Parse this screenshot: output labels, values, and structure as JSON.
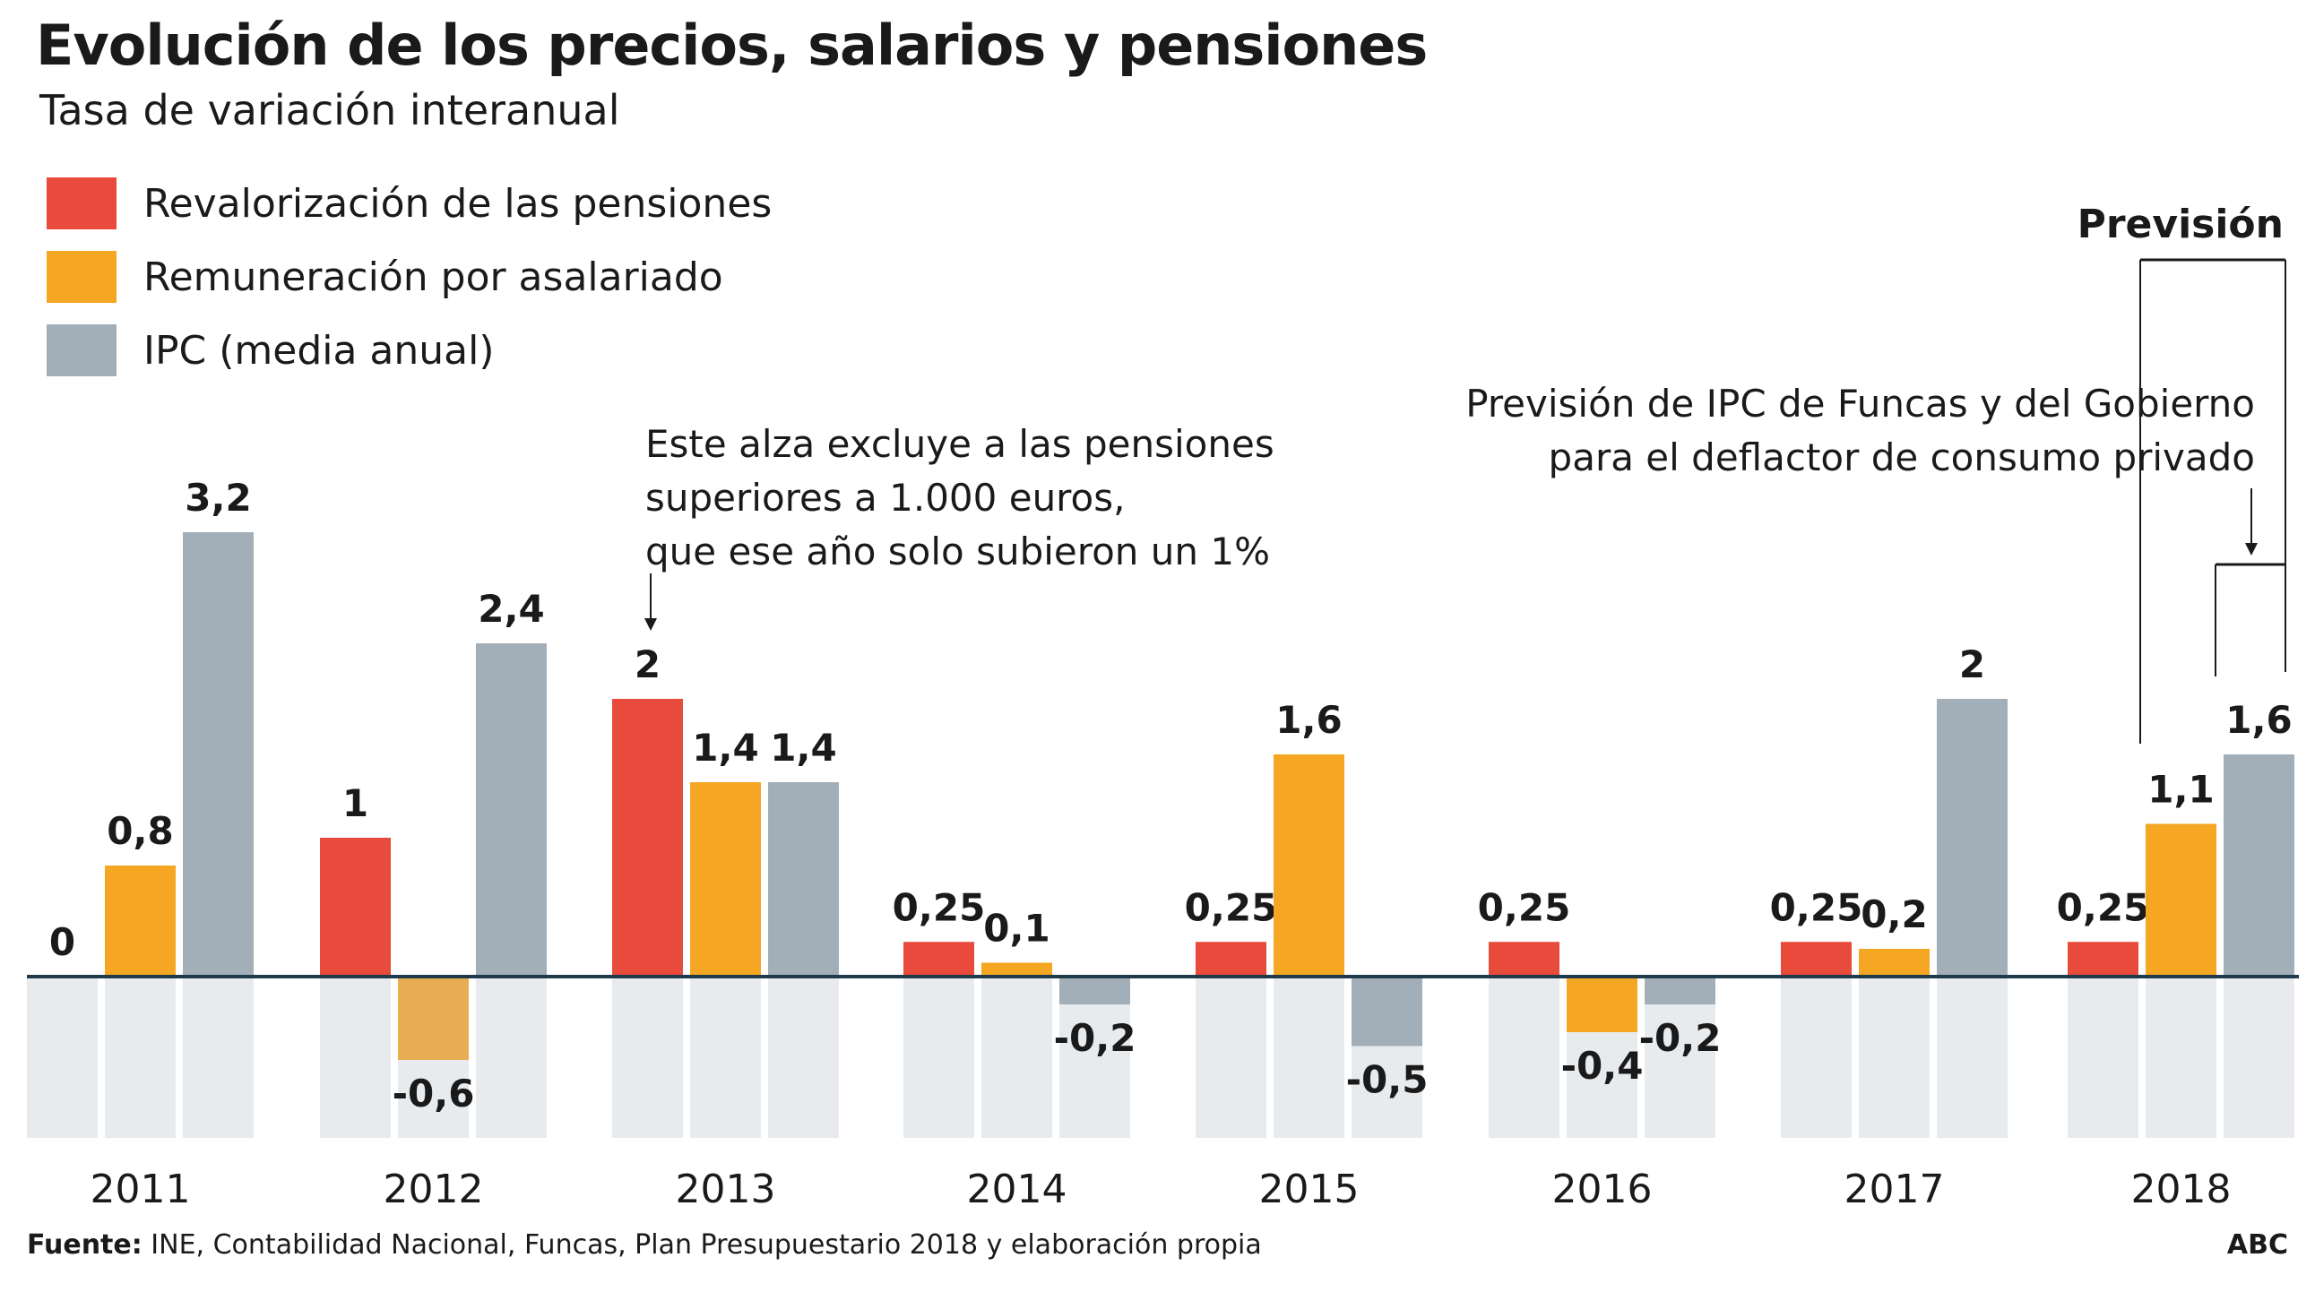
{
  "title": "Evolución de los precios, salarios y pensiones",
  "subtitle": "Tasa de variación interanual",
  "legend": [
    {
      "label": "Revalorización de las pensiones",
      "color": "#e84a3b"
    },
    {
      "label": "Remuneración por asalariado",
      "color": "#f5a623"
    },
    {
      "label": "IPC (media anual)",
      "color": "#a3afb8"
    }
  ],
  "annotations": {
    "note_2013": [
      "Este alza excluye a las pensiones",
      "superiores a 1.000 euros,",
      "que ese año solo subieron un 1%"
    ],
    "forecast_label": "Previsión",
    "forecast_note": [
      "Previsión de IPC de Funcas y del Gobierno",
      "para el deflactor de consumo privado"
    ]
  },
  "footer": {
    "source_label": "Fuente:",
    "source_text": "INE, Contabilidad Nacional, Funcas, Plan Presupuestario 2018 y elaboración propia",
    "brand": "ABC"
  },
  "colors": {
    "pensions": "#e84a3b",
    "salaries": "#f5a623",
    "salaries_negative": "#e8ad52",
    "ipc": "#a3afb8",
    "background_column": "#e8ebee",
    "baseline": "#1f3a4a"
  },
  "chart_data": {
    "type": "bar",
    "categories": [
      "2011",
      "2012",
      "2013",
      "2014",
      "2015",
      "2016",
      "2017",
      "2018"
    ],
    "series": [
      {
        "name": "Revalorización de las pensiones",
        "values": [
          0,
          1,
          2,
          0.25,
          0.25,
          0.25,
          0.25,
          0.25
        ],
        "labels": [
          "0",
          "1",
          "2",
          "0,25",
          "0,25",
          "0,25",
          "0,25",
          "0,25"
        ]
      },
      {
        "name": "Remuneración por asalariado",
        "values": [
          0.8,
          -0.6,
          1.4,
          0.1,
          1.6,
          -0.4,
          0.2,
          1.1
        ],
        "labels": [
          "0,8",
          "-0,6",
          "1,4",
          "0,1",
          "1,6",
          "-0,4",
          "0,2",
          "1,1"
        ]
      },
      {
        "name": "IPC (media anual)",
        "values": [
          3.2,
          2.4,
          1.4,
          -0.2,
          -0.5,
          -0.2,
          2,
          1.6
        ],
        "labels": [
          "3,2",
          "2,4",
          "1,4",
          "-0,2",
          "-0,5",
          "-0,2",
          "2",
          "1,6"
        ]
      }
    ],
    "forecast_category": "2018"
  }
}
